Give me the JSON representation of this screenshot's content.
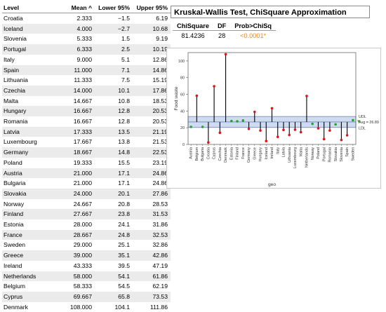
{
  "table": {
    "headers": {
      "level": "Level",
      "mean": "Mean ^",
      "lower": "Lower 95%",
      "upper": "Upper 95%"
    },
    "rows": [
      {
        "level": "Croatia",
        "mean": "2.333",
        "lower": "−1.5",
        "upper": "6.19"
      },
      {
        "level": "Iceland",
        "mean": "4.000",
        "lower": "−2.7",
        "upper": "10.68"
      },
      {
        "level": "Slovenia",
        "mean": "5.333",
        "lower": "1.5",
        "upper": "9.19"
      },
      {
        "level": "Portugal",
        "mean": "6.333",
        "lower": "2.5",
        "upper": "10.19"
      },
      {
        "level": "Italy",
        "mean": "9.000",
        "lower": "5.1",
        "upper": "12.86"
      },
      {
        "level": "Spain",
        "mean": "11.000",
        "lower": "7.1",
        "upper": "14.86"
      },
      {
        "level": "Lithuania",
        "mean": "11.333",
        "lower": "7.5",
        "upper": "15.19"
      },
      {
        "level": "Czechia",
        "mean": "14.000",
        "lower": "10.1",
        "upper": "17.86"
      },
      {
        "level": "Malta",
        "mean": "14.667",
        "lower": "10.8",
        "upper": "18.53"
      },
      {
        "level": "Hungary",
        "mean": "16.667",
        "lower": "12.8",
        "upper": "20.53"
      },
      {
        "level": "Romania",
        "mean": "16.667",
        "lower": "12.8",
        "upper": "20.53"
      },
      {
        "level": "Latvia",
        "mean": "17.333",
        "lower": "13.5",
        "upper": "21.19"
      },
      {
        "level": "Luxembourg",
        "mean": "17.667",
        "lower": "13.8",
        "upper": "21.53"
      },
      {
        "level": "Germany",
        "mean": "18.667",
        "lower": "14.8",
        "upper": "22.53"
      },
      {
        "level": "Poland",
        "mean": "19.333",
        "lower": "15.5",
        "upper": "23.19"
      },
      {
        "level": "Austria",
        "mean": "21.000",
        "lower": "17.1",
        "upper": "24.86"
      },
      {
        "level": "Bulgaria",
        "mean": "21.000",
        "lower": "17.1",
        "upper": "24.86"
      },
      {
        "level": "Slovakia",
        "mean": "24.000",
        "lower": "20.1",
        "upper": "27.86"
      },
      {
        "level": "Norway",
        "mean": "24.667",
        "lower": "20.8",
        "upper": "28.53"
      },
      {
        "level": "Finland",
        "mean": "27.667",
        "lower": "23.8",
        "upper": "31.53"
      },
      {
        "level": "Estonia",
        "mean": "28.000",
        "lower": "24.1",
        "upper": "31.86"
      },
      {
        "level": "France",
        "mean": "28.667",
        "lower": "24.8",
        "upper": "32.53"
      },
      {
        "level": "Sweden",
        "mean": "29.000",
        "lower": "25.1",
        "upper": "32.86"
      },
      {
        "level": "Greece",
        "mean": "39.000",
        "lower": "35.1",
        "upper": "42.86"
      },
      {
        "level": "Ireland",
        "mean": "43.333",
        "lower": "39.5",
        "upper": "47.19"
      },
      {
        "level": "Netherlands",
        "mean": "58.000",
        "lower": "54.1",
        "upper": "61.86"
      },
      {
        "level": "Belgium",
        "mean": "58.333",
        "lower": "54.5",
        "upper": "62.19"
      },
      {
        "level": "Cyprus",
        "mean": "69.667",
        "lower": "65.8",
        "upper": "73.53"
      },
      {
        "level": "Denmark",
        "mean": "108.000",
        "lower": "104.1",
        "upper": "111.86"
      }
    ]
  },
  "kw": {
    "title": "Kruskal-Wallis Test, ChiSquare Approximation",
    "headers": {
      "chisq": "ChiSquare",
      "df": "DF",
      "prob": "Prob>ChiSq"
    },
    "values": {
      "chisq": "81.4236",
      "df": "28",
      "prob": "<0.0001*"
    }
  },
  "colors": {
    "accent": "#f0851e",
    "mean_dot_high": "#e0131b",
    "mean_dot_in": "#22a52a",
    "band": "#cfdcf0",
    "needle": "#000000"
  },
  "chart_data": {
    "type": "scatter",
    "subtype": "analysis-of-means needle chart",
    "xlabel": "geo",
    "ylabel": "Food waste",
    "ylim": [
      0,
      110
    ],
    "yticks": [
      0,
      20,
      40,
      60,
      80,
      100
    ],
    "avg": 26.89,
    "udl": 33.5,
    "ldl": 20.3,
    "limit_labels": {
      "udl": "UDL",
      "avg": "Avg = 26.89",
      "ldl": "LDL"
    },
    "categories": [
      "Austria",
      "Belgium",
      "Bulgaria",
      "Croatia",
      "Cyprus",
      "Czechia",
      "Denmark",
      "Estonia",
      "Finland",
      "France",
      "Germany",
      "Greece",
      "Hungary",
      "Iceland",
      "Ireland",
      "Italy",
      "Latvia",
      "Lithuania",
      "Luxembourg",
      "Malta",
      "Netherlands",
      "Norway",
      "Poland",
      "Portugal",
      "Romania",
      "Slovakia",
      "Slovenia",
      "Spain",
      "Sweden"
    ],
    "values": [
      21.0,
      58.333,
      21.0,
      2.333,
      69.667,
      14.0,
      108.0,
      28.0,
      27.667,
      28.667,
      18.667,
      39.0,
      16.667,
      4.0,
      43.333,
      9.0,
      17.333,
      11.333,
      17.667,
      14.667,
      58.0,
      24.667,
      19.333,
      6.333,
      16.667,
      24.0,
      5.333,
      11.0,
      29.0
    ],
    "grid": false
  }
}
